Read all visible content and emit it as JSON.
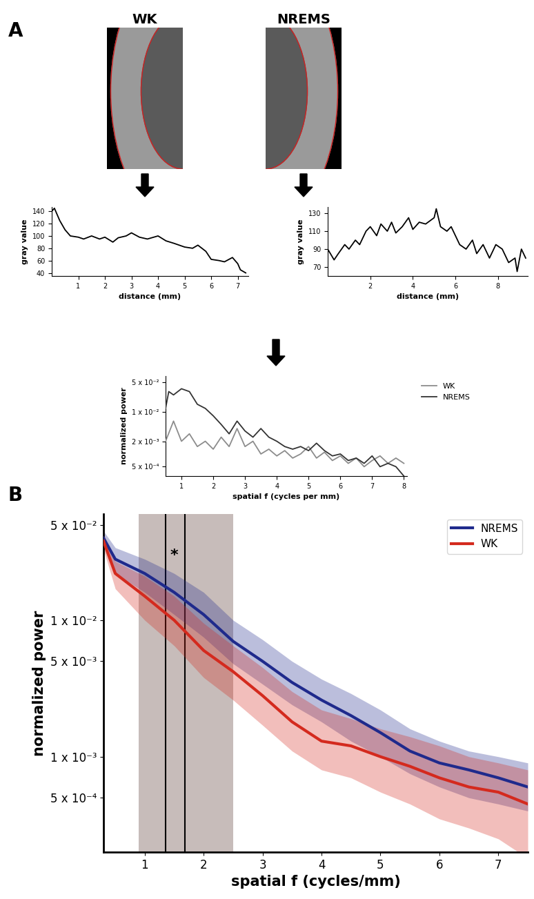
{
  "panel_labels": [
    "A",
    "B"
  ],
  "images": {
    "titles": [
      "WK",
      "NREMS"
    ]
  },
  "chart_data": [
    {
      "type": "line",
      "xlabel": "distance (mm)",
      "ylabel": "gray value",
      "xlim": [
        0,
        7.4
      ],
      "ylim": [
        35,
        147
      ],
      "xticks": [
        1,
        2,
        3,
        4,
        5,
        6,
        7
      ],
      "yticks": [
        40,
        60,
        80,
        100,
        120,
        140
      ],
      "grid": false,
      "series": [
        {
          "name": "WK",
          "color": "#000000",
          "x": [
            0,
            0.1,
            0.3,
            0.5,
            0.7,
            1,
            1.2,
            1.5,
            1.8,
            2,
            2.3,
            2.5,
            2.8,
            3,
            3.3,
            3.6,
            4,
            4.3,
            4.6,
            5,
            5.3,
            5.5,
            5.8,
            6,
            6.3,
            6.5,
            6.8,
            7,
            7.1,
            7.3
          ],
          "values": [
            140,
            145,
            125,
            110,
            100,
            98,
            95,
            100,
            95,
            98,
            90,
            97,
            100,
            105,
            98,
            95,
            100,
            92,
            88,
            82,
            80,
            85,
            75,
            62,
            60,
            58,
            65,
            55,
            45,
            40
          ]
        }
      ]
    },
    {
      "type": "line",
      "xlabel": "distance (mm)",
      "ylabel": "gray value",
      "xlim": [
        0,
        9.4
      ],
      "ylim": [
        60,
        137
      ],
      "xticks": [
        2,
        4,
        6,
        8
      ],
      "yticks": [
        70,
        90,
        110,
        130
      ],
      "grid": false,
      "series": [
        {
          "name": "NREMS",
          "color": "#000000",
          "x": [
            0,
            0.3,
            0.5,
            0.8,
            1,
            1.3,
            1.5,
            1.8,
            2,
            2.3,
            2.5,
            2.8,
            3,
            3.2,
            3.5,
            3.8,
            4,
            4.3,
            4.6,
            5,
            5.1,
            5.3,
            5.6,
            5.8,
            6,
            6.2,
            6.5,
            6.8,
            7,
            7.3,
            7.6,
            7.9,
            8.2,
            8.5,
            8.8,
            8.9,
            9.1,
            9.3
          ],
          "values": [
            90,
            78,
            85,
            95,
            90,
            100,
            95,
            110,
            115,
            105,
            118,
            110,
            120,
            108,
            115,
            125,
            112,
            120,
            118,
            125,
            135,
            115,
            110,
            115,
            105,
            95,
            90,
            100,
            85,
            95,
            80,
            95,
            90,
            75,
            80,
            65,
            90,
            80
          ]
        }
      ]
    },
    {
      "type": "line",
      "xlabel": "spatial f (cycles per mm)",
      "ylabel": "normalized power",
      "log": "y",
      "xlim": [
        0.5,
        8.1
      ],
      "ylim": [
        0.0003,
        0.07
      ],
      "xticks": [
        1,
        2,
        3,
        4,
        5,
        6,
        7,
        8
      ],
      "yticks": [
        {
          "value": 0.05,
          "label": "5 x 10⁻²"
        },
        {
          "value": 0.01,
          "label": "1 x 10⁻²"
        },
        {
          "value": 0.002,
          "label": "2 x 10⁻³"
        },
        {
          "value": 0.0005,
          "label": "5 x 10⁻⁴"
        }
      ],
      "grid": false,
      "legend": "upper left",
      "series": [
        {
          "name": "WK",
          "color": "#8c8c8c",
          "x": [
            0.5,
            0.75,
            1,
            1.25,
            1.5,
            1.75,
            2,
            2.25,
            2.5,
            2.75,
            3,
            3.25,
            3.5,
            3.75,
            4,
            4.25,
            4.5,
            4.75,
            5,
            5.25,
            5.5,
            5.75,
            6,
            6.25,
            6.5,
            6.75,
            7,
            7.25,
            7.5,
            7.75,
            8
          ],
          "values": [
            0.002,
            0.006,
            0.002,
            0.003,
            0.0015,
            0.002,
            0.0013,
            0.0025,
            0.0015,
            0.004,
            0.0015,
            0.002,
            0.001,
            0.0013,
            0.0009,
            0.0012,
            0.0008,
            0.001,
            0.0015,
            0.0008,
            0.0011,
            0.0007,
            0.0009,
            0.0006,
            0.0008,
            0.0005,
            0.0007,
            0.0009,
            0.0006,
            0.0008,
            0.0006
          ]
        },
        {
          "name": "NREMS",
          "color": "#333333",
          "x": [
            0.5,
            0.6,
            0.75,
            1,
            1.25,
            1.5,
            1.75,
            2,
            2.25,
            2.5,
            2.75,
            3,
            3.25,
            3.5,
            3.75,
            4,
            4.25,
            4.5,
            4.75,
            5,
            5.25,
            5.5,
            5.75,
            6,
            6.25,
            6.5,
            6.75,
            7,
            7.25,
            7.5,
            7.75,
            8
          ],
          "values": [
            0.012,
            0.03,
            0.025,
            0.035,
            0.03,
            0.015,
            0.012,
            0.008,
            0.005,
            0.003,
            0.006,
            0.0035,
            0.0025,
            0.004,
            0.0025,
            0.002,
            0.0015,
            0.0013,
            0.0015,
            0.0012,
            0.0018,
            0.0012,
            0.0009,
            0.001,
            0.0007,
            0.0008,
            0.0006,
            0.0009,
            0.0005,
            0.0006,
            0.0005,
            0.0003
          ]
        }
      ]
    },
    {
      "type": "line",
      "xlabel": "spatial f (cycles/mm)",
      "ylabel": "normalized power",
      "log": "y",
      "xlim": [
        0.3,
        7.5
      ],
      "ylim": [
        0.0002,
        0.06
      ],
      "xticks": [
        1,
        2,
        3,
        4,
        5,
        6,
        7
      ],
      "yticks": [
        {
          "value": 0.05,
          "label": "5 x 10⁻²"
        },
        {
          "value": 0.01,
          "label": "1 x 10⁻²"
        },
        {
          "value": 0.005,
          "label": "5 x 10⁻³"
        },
        {
          "value": 0.001,
          "label": "1 x 10⁻³"
        },
        {
          "value": 0.0005,
          "label": "5 x 10⁻⁴"
        }
      ],
      "grid": false,
      "legend": "upper right",
      "shaded_range": [
        0.9,
        2.5
      ],
      "vlines": [
        1.35,
        1.68
      ],
      "annotations": [
        {
          "text": "*",
          "x": 1.5,
          "y": 0.03
        }
      ],
      "series": [
        {
          "name": "NREMS",
          "color": "#1f2a8c",
          "x": [
            0.3,
            0.5,
            1,
            1.5,
            2,
            2.5,
            3,
            3.5,
            4,
            4.5,
            5,
            5.5,
            6,
            6.5,
            7,
            7.5
          ],
          "values": [
            0.04,
            0.028,
            0.022,
            0.016,
            0.011,
            0.007,
            0.005,
            0.0035,
            0.0026,
            0.002,
            0.0015,
            0.0011,
            0.0009,
            0.0008,
            0.0007,
            0.0006
          ],
          "lower": [
            0.035,
            0.022,
            0.016,
            0.011,
            0.0075,
            0.0048,
            0.0034,
            0.0024,
            0.0018,
            0.0013,
            0.001,
            0.00075,
            0.0006,
            0.0005,
            0.00045,
            0.0004
          ],
          "upper": [
            0.045,
            0.034,
            0.028,
            0.022,
            0.016,
            0.01,
            0.0072,
            0.005,
            0.0037,
            0.0029,
            0.0022,
            0.0016,
            0.0013,
            0.0011,
            0.001,
            0.0009
          ]
        },
        {
          "name": "WK",
          "color": "#d42a1e",
          "x": [
            0.3,
            0.5,
            1,
            1.5,
            2,
            2.5,
            3,
            3.5,
            4,
            4.5,
            5,
            5.5,
            6,
            6.5,
            7,
            7.5
          ],
          "values": [
            0.038,
            0.022,
            0.015,
            0.01,
            0.006,
            0.0042,
            0.0028,
            0.0018,
            0.0013,
            0.0012,
            0.001,
            0.00085,
            0.0007,
            0.0006,
            0.00055,
            0.00045
          ],
          "lower": [
            0.033,
            0.017,
            0.01,
            0.0065,
            0.0038,
            0.0026,
            0.0017,
            0.0011,
            0.0008,
            0.0007,
            0.00055,
            0.00045,
            0.00035,
            0.0003,
            0.00025,
            0.00018
          ],
          "upper": [
            0.043,
            0.027,
            0.021,
            0.015,
            0.0095,
            0.0065,
            0.0045,
            0.003,
            0.0022,
            0.0019,
            0.0016,
            0.0014,
            0.0012,
            0.001,
            0.0009,
            0.0008
          ]
        }
      ]
    }
  ]
}
